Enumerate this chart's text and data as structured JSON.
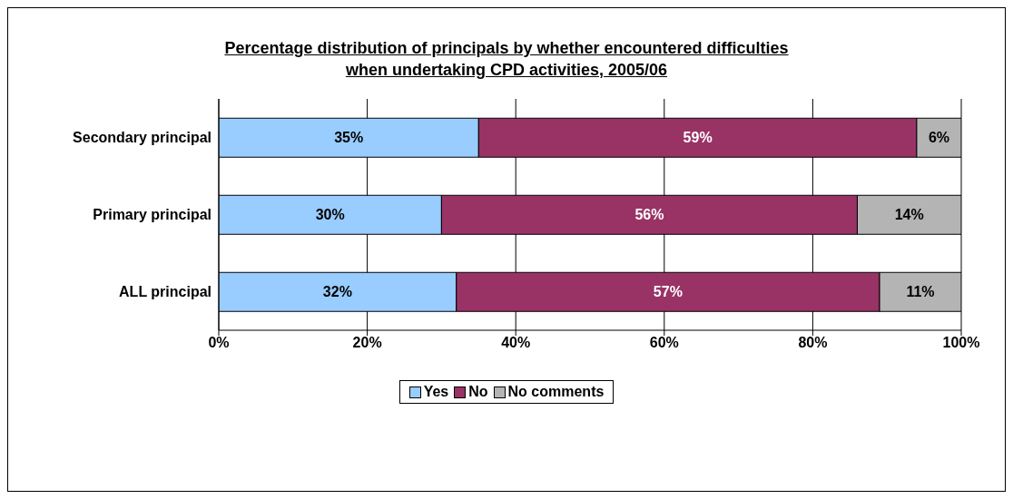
{
  "chart_data": {
    "type": "bar",
    "orientation": "horizontal",
    "stacked": true,
    "title": "Percentage distribution of principals by whether encountered difficulties\nwhen undertaking CPD activities, 2005/06",
    "categories": [
      "Secondary principal",
      "Primary principal",
      "ALL principal"
    ],
    "series": [
      {
        "name": "Yes",
        "color": "#99ccff",
        "values": [
          35,
          30,
          32
        ],
        "value_labels": [
          "35%",
          "30%",
          "32%"
        ]
      },
      {
        "name": "No",
        "color": "#993366",
        "values": [
          59,
          56,
          57
        ],
        "value_labels": [
          "59%",
          "56%",
          "57%"
        ]
      },
      {
        "name": "No comments",
        "color": "#b4b4b4",
        "values": [
          6,
          14,
          11
        ],
        "value_labels": [
          "6%",
          "14%",
          "11%"
        ]
      }
    ],
    "xlim": [
      0,
      100
    ],
    "xticks": [
      {
        "value": 0,
        "label": "0%"
      },
      {
        "value": 20,
        "label": "20%"
      },
      {
        "value": 40,
        "label": "40%"
      },
      {
        "value": 60,
        "label": "60%"
      },
      {
        "value": 80,
        "label": "80%"
      },
      {
        "value": 100,
        "label": "100%"
      }
    ],
    "grid": "x",
    "legend": "bottom"
  }
}
